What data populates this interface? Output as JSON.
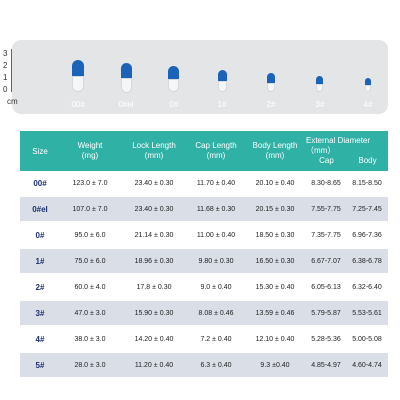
{
  "ruler": {
    "scale": [
      "3",
      "2",
      "1",
      "0"
    ],
    "unit": "cm",
    "capsules": [
      {
        "label": "00#"
      },
      {
        "label": "0#el"
      },
      {
        "label": "0#"
      },
      {
        "label": "1#"
      },
      {
        "label": "2#"
      },
      {
        "label": "3#"
      },
      {
        "label": "4#"
      }
    ],
    "cap_color": "#1a63b8",
    "body_color": "#f4f6f8"
  },
  "table": {
    "header_color": "#2fb1a6",
    "headers": {
      "size": "Size",
      "weight": "Weight",
      "weight_unit": "(mg)",
      "lock": "Lock Length",
      "lock_unit": "(mm)",
      "cap": "Cap Length",
      "cap_unit": "(mm)",
      "body": "Body Length",
      "body_unit": "(mm)",
      "ext": "External Diameter（mm）",
      "ext_cap": "Cap",
      "ext_body": "Body"
    },
    "rows": [
      {
        "size": "00#",
        "weight": "123.0 ± 7.0",
        "lock": "23.40 ± 0.30",
        "cap": "11.70 ± 0.40",
        "body": "20.10 ± 0.40",
        "ext_cap": "8.30-8.65",
        "ext_body": "8.15-8.50"
      },
      {
        "size": "0#el",
        "weight": "107.0 ± 7.0",
        "lock": "23.40 ± 0.30",
        "cap": "11.68 ± 0.30",
        "body": "20.15 ± 0.30",
        "ext_cap": "7.55-7.75",
        "ext_body": "7.25-7.45"
      },
      {
        "size": "0#",
        "weight": "95.0 ± 6.0",
        "lock": "21.14 ± 0.30",
        "cap": "11.00 ± 0.40",
        "body": "18.50 ± 0.30",
        "ext_cap": "7.35-7.75",
        "ext_body": "6.96-7.36"
      },
      {
        "size": "1#",
        "weight": "75.0 ± 6.0",
        "lock": "18.96 ± 0.30",
        "cap": "9.80 ± 0.30",
        "body": "16.50 ± 0.30",
        "ext_cap": "6.67-7.07",
        "ext_body": "6.38-6.78"
      },
      {
        "size": "2#",
        "weight": "60.0 ± 4.0",
        "lock": "17.8 ± 0.30",
        "cap": "9.0 ± 0.40",
        "body": "15.30 ± 0.40",
        "ext_cap": "6.05-6.13",
        "ext_body": "6.32-6.40"
      },
      {
        "size": "3#",
        "weight": "47.0 ± 3.0",
        "lock": "15.90 ± 0.30",
        "cap": "8.08 ± 0.46",
        "body": "13.59 ± 0.46",
        "ext_cap": "5.79-5.87",
        "ext_body": "5.53-5.61"
      },
      {
        "size": "4#",
        "weight": "38.0 ± 3.0",
        "lock": "14.20 ± 0.40",
        "cap": "7.2 ± 0.40",
        "body": "12.10 ± 0.40",
        "ext_cap": "5.28-5.36",
        "ext_body": "5.00-5.08"
      },
      {
        "size": "5#",
        "weight": "28.0 ± 3.0",
        "lock": "11.20 ± 0.40",
        "cap": "6.3 ± 0.40",
        "body": "9.3 ±0.40",
        "ext_cap": "4.85-4.97",
        "ext_body": "4.60-4.74"
      }
    ]
  }
}
